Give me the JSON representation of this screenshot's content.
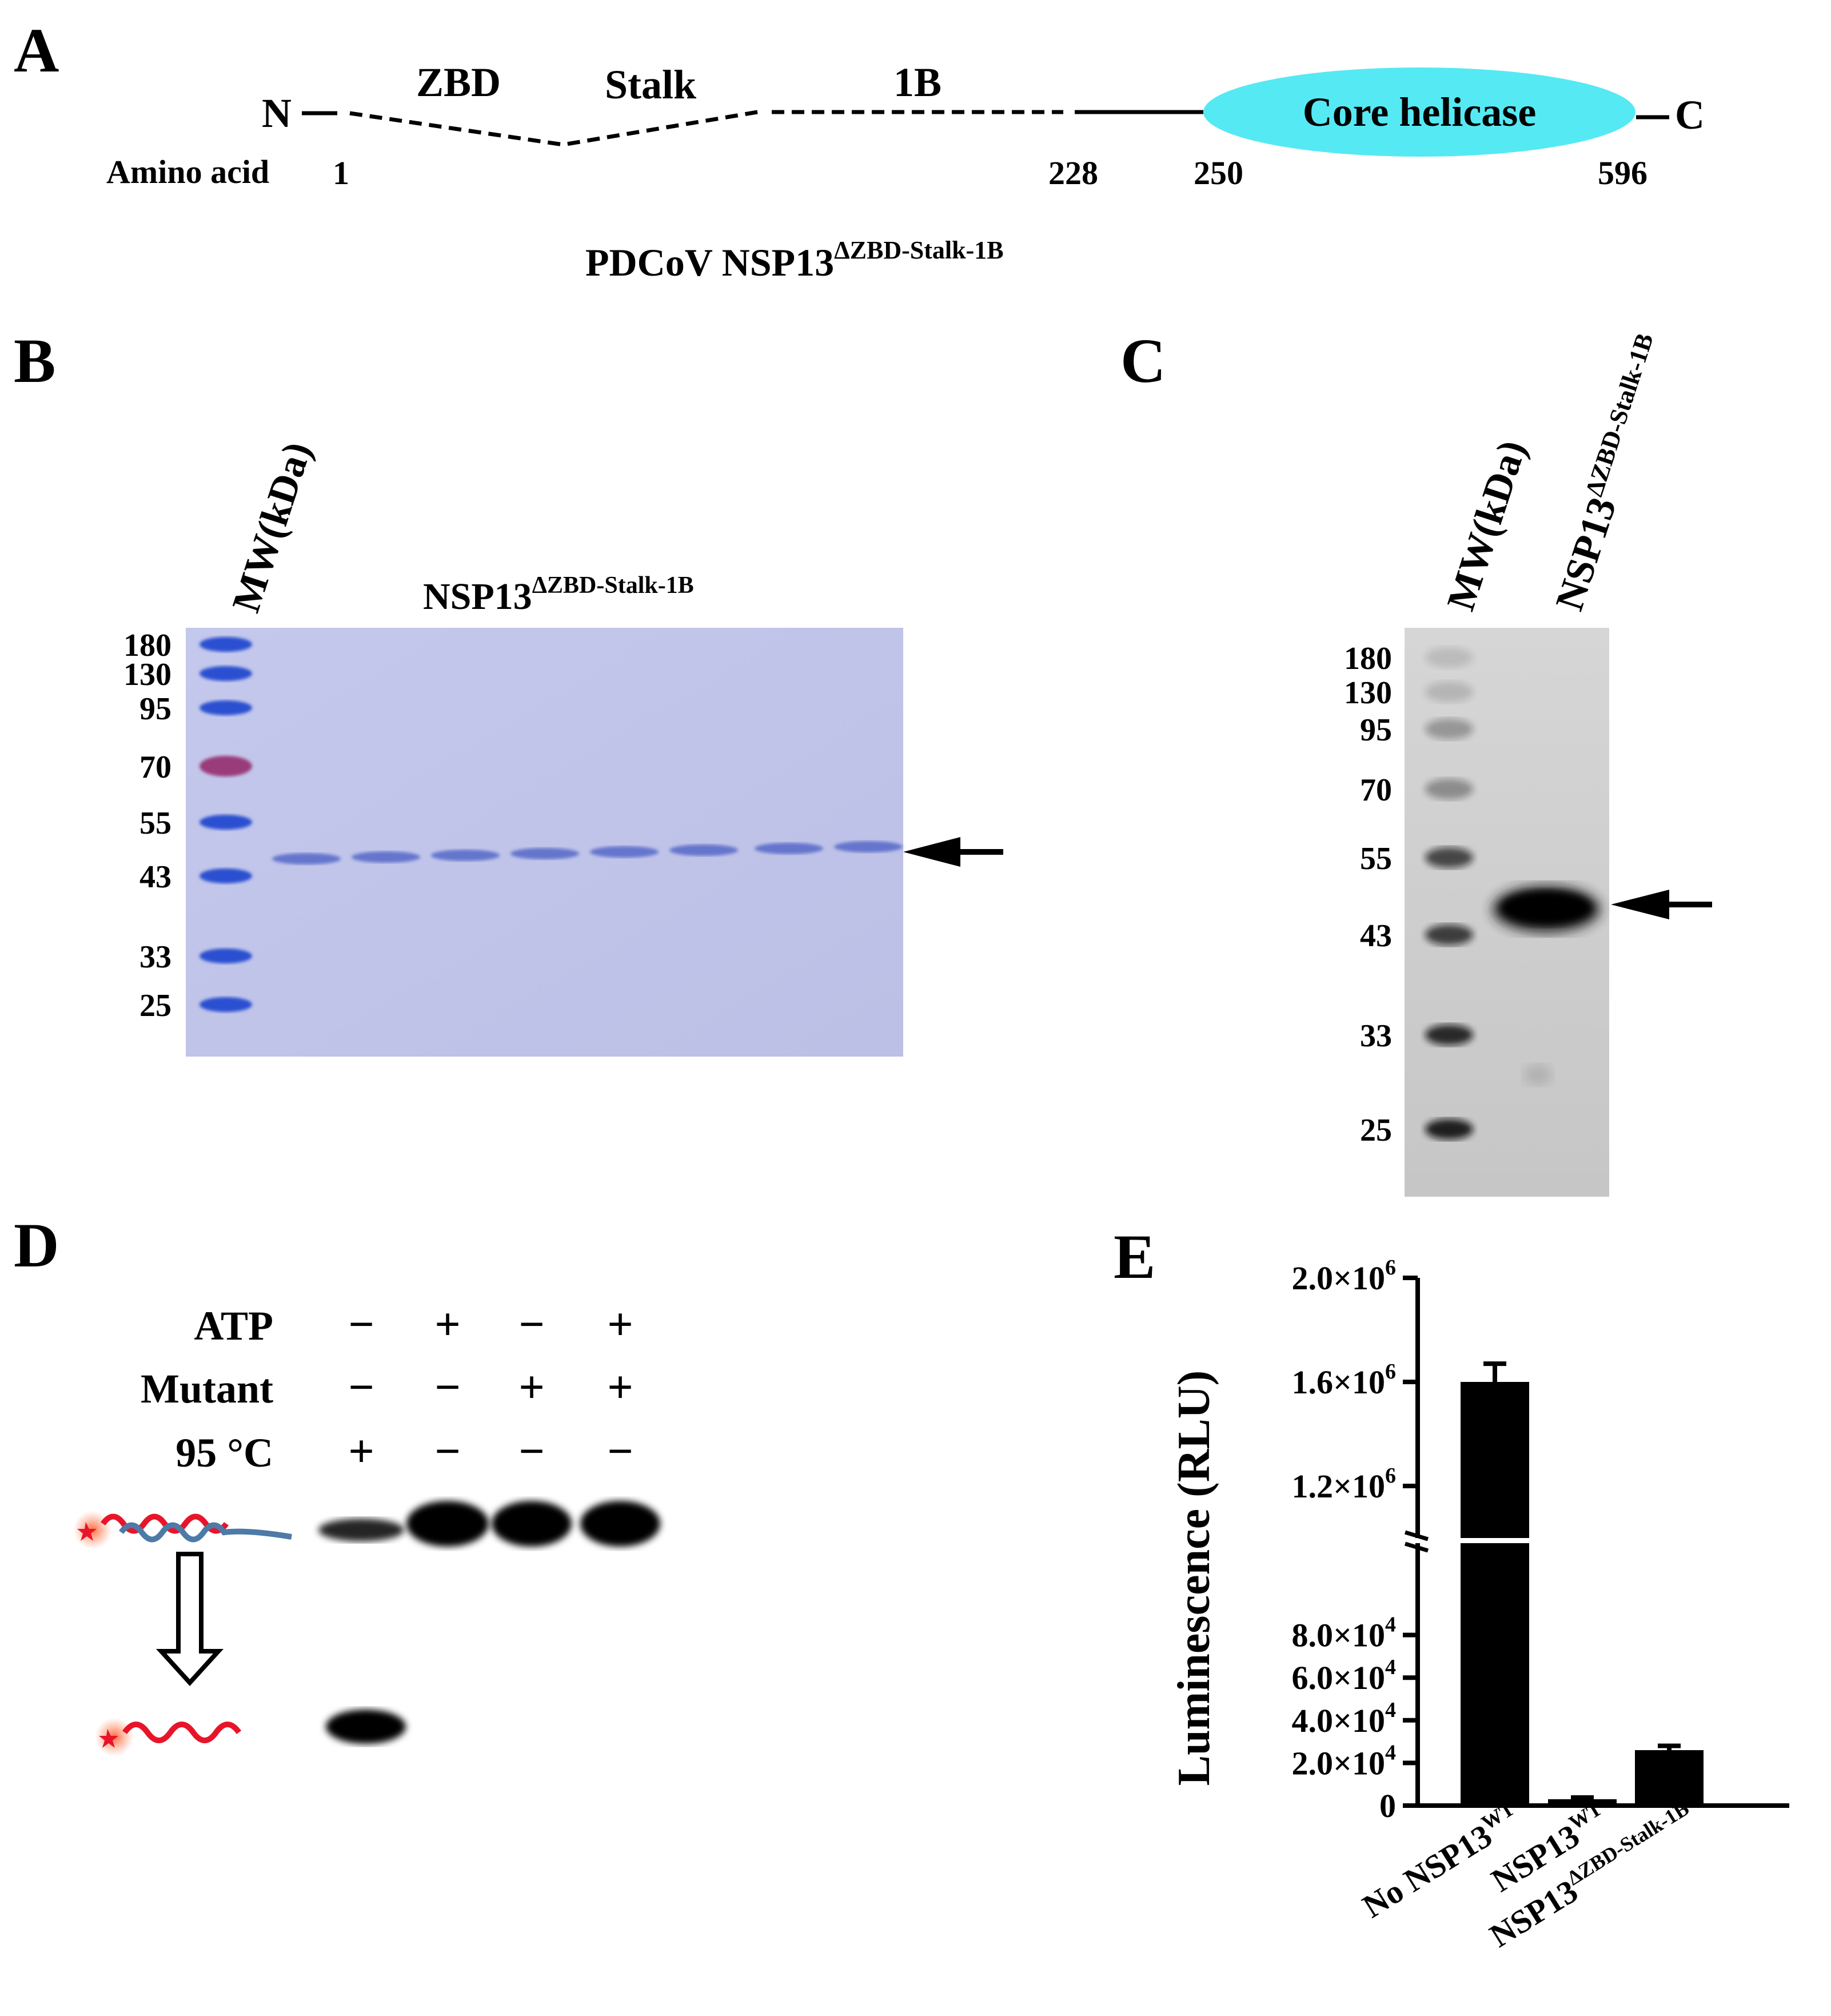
{
  "panels": {
    "a": "A",
    "b": "B",
    "c": "C",
    "d": "D",
    "e": "E"
  },
  "panel_a": {
    "n_term": "N",
    "c_term": "C",
    "segments": [
      "ZBD",
      "Stalk",
      "1B"
    ],
    "core_label": "Core helicase",
    "aa_label": "Amino acid",
    "positions": [
      "1",
      "228",
      "250",
      "596"
    ],
    "construct": "PDCoV NSP13",
    "construct_sup": "ΔZBD-Stalk-1B"
  },
  "panel_b": {
    "mw_label": "MW(kDa)",
    "title": "NSP13",
    "title_sup": "ΔZBD-Stalk-1B",
    "markers": [
      "180",
      "130",
      "95",
      "70",
      "55",
      "43",
      "33",
      "25"
    ],
    "lanes": 8
  },
  "panel_c": {
    "mw_label": "MW(kDa)",
    "lane_label": "NSP13",
    "lane_sup": "ΔZBD-Stalk-1B",
    "markers": [
      "180",
      "130",
      "95",
      "70",
      "55",
      "43",
      "33",
      "25"
    ]
  },
  "panel_d": {
    "rows": [
      {
        "label": "ATP",
        "values": [
          "−",
          "+",
          "−",
          "+"
        ]
      },
      {
        "label": "Mutant",
        "values": [
          "−",
          "−",
          "+",
          "+"
        ]
      },
      {
        "label": "95 °C",
        "values": [
          "+",
          "−",
          "−",
          "−"
        ]
      }
    ]
  },
  "chart_data": {
    "type": "bar",
    "categories": [
      "No NSP13^WT",
      "NSP13^WT",
      "NSP13^ΔZBD-Stalk-1B"
    ],
    "values": [
      1600000,
      3000,
      26000
    ],
    "errors": [
      70000,
      800,
      2000
    ],
    "ylabel": "Luminescence (RLU)",
    "axis_break": {
      "lower": [
        0,
        100000
      ],
      "upper": [
        1000000,
        2000000
      ]
    },
    "yticks_lower": [
      "0",
      "2.0×10",
      "4.0×10",
      "6.0×10",
      "8.0×10"
    ],
    "yticks_lower_exp": [
      "",
      "4",
      "4",
      "4",
      "4"
    ],
    "yticks_upper": [
      "1.2×10",
      "1.6×10",
      "2.0×10"
    ],
    "yticks_upper_exp": [
      "6",
      "6",
      "6"
    ],
    "xtick_labels": [
      {
        "base": "No NSP13",
        "sup": "WT"
      },
      {
        "base": "NSP13",
        "sup": "WT"
      },
      {
        "base": "NSP13",
        "sup": "ΔZBD-Stalk-1B"
      }
    ]
  }
}
